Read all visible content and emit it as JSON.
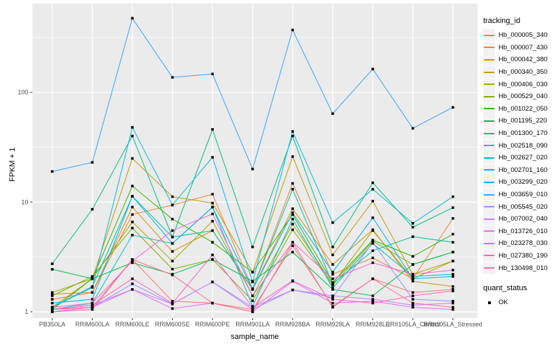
{
  "colors": {
    "panel_bg": "#EBEBEB",
    "grid_major": "#FFFFFF",
    "grid_minor": "#FFFFFF",
    "tick_text": "#4D4D4D",
    "axis_title": "#000000",
    "point": "#000000"
  },
  "chart_data": {
    "type": "line",
    "title": "",
    "xlabel": "sample_name",
    "ylabel": "FPKM + 1",
    "y_scale": "log10",
    "y_ticks": [
      1,
      10,
      100
    ],
    "y_tick_labels": [
      "1",
      "10",
      "100"
    ],
    "y_minor_breaks": [
      3.162,
      31.62,
      316.2
    ],
    "ylim": [
      0.88,
      640
    ],
    "grid": true,
    "legend_position": "right",
    "legend_title": "tracking_id",
    "legend2_title": "quant_status",
    "legend2_items": [
      {
        "label": "OK"
      }
    ],
    "categories": [
      "PB350LA",
      "RRIM600LA",
      "RRIM600LE",
      "RRIM600SE",
      "RRIM600PE",
      "RRIM901LA",
      "RRIM928BA",
      "RRIM928LA",
      "RRIM928LE",
      "RRII105LA_Control",
      "RRII105LA_Stressed"
    ],
    "series": [
      {
        "name": "Hb_000005_340",
        "color": "#F8766D",
        "values": [
          1.05,
          1.1,
          3.0,
          1.25,
          1.2,
          1.05,
          4.0,
          1.12,
          2.0,
          1.5,
          1.6
        ]
      },
      {
        "name": "Hb_000007_430",
        "color": "#EA8331",
        "values": [
          1.3,
          1.5,
          7.7,
          9.4,
          11.8,
          1.62,
          14.8,
          2.2,
          3.1,
          2.0,
          7.1
        ]
      },
      {
        "name": "Hb_000042_380",
        "color": "#D89000",
        "values": [
          1.45,
          1.5,
          9.0,
          3.55,
          5.5,
          1.6,
          8.7,
          2.7,
          5.6,
          1.9,
          1.7
        ]
      },
      {
        "name": "Hb_000340_350",
        "color": "#C09B00",
        "values": [
          1.1,
          2.0,
          25.0,
          11.2,
          9.8,
          2.3,
          26.0,
          3.3,
          10.2,
          2.2,
          2.9
        ]
      },
      {
        "name": "Hb_000406_030",
        "color": "#A3A500",
        "values": [
          1.5,
          2.0,
          6.6,
          2.9,
          6.7,
          1.4,
          6.3,
          1.8,
          5.5,
          2.0,
          2.9
        ]
      },
      {
        "name": "Hb_000529_040",
        "color": "#7CAE00",
        "values": [
          1.4,
          2.1,
          5.8,
          2.45,
          3.0,
          1.26,
          5.6,
          1.75,
          4.4,
          2.7,
          3.5
        ]
      },
      {
        "name": "Hb_001022_050",
        "color": "#39B600",
        "values": [
          1.05,
          2.0,
          14.0,
          7.0,
          4.3,
          2.3,
          7.7,
          1.85,
          4.5,
          3.2,
          5.1
        ]
      },
      {
        "name": "Hb_001195_220",
        "color": "#00BB4E",
        "values": [
          2.44,
          2.0,
          2.8,
          2.2,
          3.0,
          1.9,
          3.5,
          1.6,
          1.4,
          2.7,
          3.5
        ]
      },
      {
        "name": "Hb_001300_170",
        "color": "#00BF7D",
        "values": [
          2.74,
          8.6,
          40.0,
          4.8,
          46.0,
          3.9,
          40.0,
          3.9,
          15.0,
          5.9,
          8.9
        ]
      },
      {
        "name": "Hb_002518_090",
        "color": "#00C1A3",
        "values": [
          1.1,
          1.7,
          11.3,
          4.8,
          5.5,
          1.62,
          13.1,
          1.8,
          3.6,
          4.84,
          4.3
        ]
      },
      {
        "name": "Hb_002627_020",
        "color": "#00BFC4",
        "values": [
          1.05,
          1.2,
          5.0,
          4.2,
          9.0,
          1.12,
          7.0,
          1.65,
          4.2,
          2.1,
          2.2
        ]
      },
      {
        "name": "Hb_002701_160",
        "color": "#00BAE0",
        "values": [
          1.1,
          1.67,
          48.0,
          9.4,
          25.6,
          1.87,
          44.0,
          6.5,
          13.1,
          6.4,
          11.2
        ]
      },
      {
        "name": "Hb_003299_020",
        "color": "#00B0F6",
        "values": [
          1.2,
          1.3,
          11.3,
          4.2,
          9.0,
          1.6,
          8.0,
          2.3,
          7.2,
          2.0,
          2.1
        ]
      },
      {
        "name": "Hb_003659_010",
        "color": "#35A2FF",
        "values": [
          19.0,
          23.0,
          474.0,
          137.0,
          147.0,
          20.0,
          370.0,
          64.0,
          163.0,
          47.0,
          73.0
        ]
      },
      {
        "name": "Hb_005545_020",
        "color": "#9590FF",
        "values": [
          1.0,
          1.1,
          1.8,
          1.18,
          1.87,
          1.1,
          1.58,
          1.35,
          4.3,
          1.3,
          1.25
        ]
      },
      {
        "name": "Hb_007002_040",
        "color": "#C77CFF",
        "values": [
          1.05,
          1.15,
          1.6,
          1.18,
          1.87,
          1.05,
          1.58,
          1.4,
          1.3,
          1.15,
          1.2
        ]
      },
      {
        "name": "Hb_013726_010",
        "color": "#E76BF3",
        "values": [
          1.0,
          1.1,
          1.6,
          1.07,
          1.2,
          1.0,
          1.9,
          1.2,
          1.25,
          1.1,
          1.05
        ]
      },
      {
        "name": "Hb_023278_030",
        "color": "#FA62DB",
        "values": [
          1.1,
          1.2,
          2.9,
          5.5,
          7.8,
          1.4,
          4.3,
          2.0,
          2.8,
          2.2,
          2.4
        ]
      },
      {
        "name": "Hb_027380_190",
        "color": "#FF62BC",
        "values": [
          1.05,
          1.15,
          2.0,
          1.2,
          3.3,
          1.1,
          1.92,
          1.3,
          1.2,
          1.4,
          1.55
        ]
      },
      {
        "name": "Hb_130498_010",
        "color": "#FF6A98",
        "values": [
          1.0,
          1.05,
          3.0,
          2.17,
          1.2,
          1.0,
          4.3,
          1.1,
          2.0,
          1.2,
          1.1
        ]
      }
    ]
  }
}
